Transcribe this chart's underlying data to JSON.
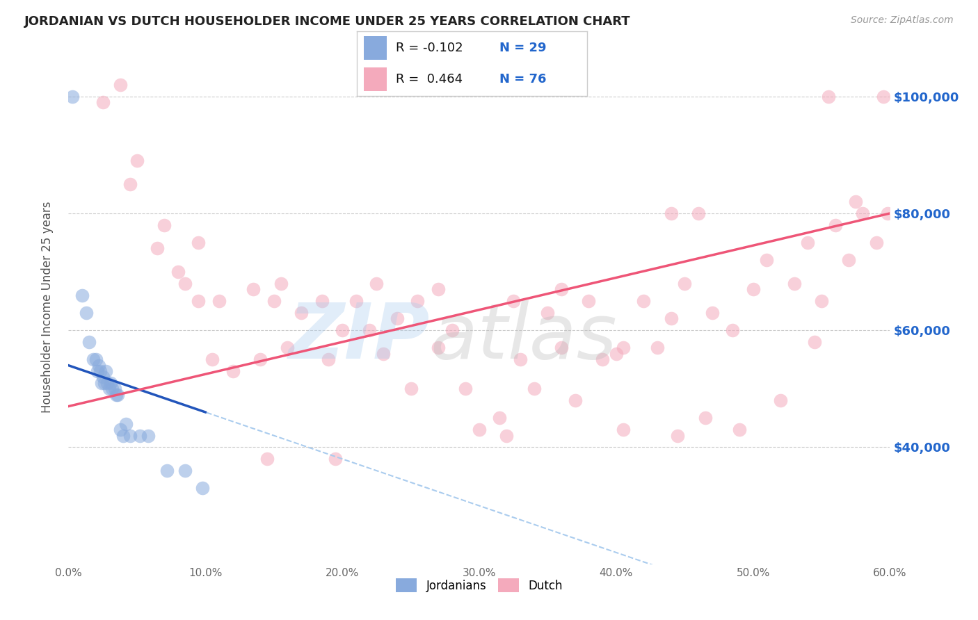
{
  "title": "JORDANIAN VS DUTCH HOUSEHOLDER INCOME UNDER 25 YEARS CORRELATION CHART",
  "source": "Source: ZipAtlas.com",
  "ylabel": "Householder Income Under 25 years",
  "legend_label1": "Jordanians",
  "legend_label2": "Dutch",
  "blue_dot_color": "#88AADD",
  "pink_dot_color": "#F4AABC",
  "blue_line_color": "#2255BB",
  "pink_line_color": "#EE5577",
  "blue_dash_color": "#AACCEE",
  "blue_r": -0.102,
  "blue_n": 29,
  "pink_r": 0.464,
  "pink_n": 76,
  "xmin": 0,
  "xmax": 60,
  "ymin": 20000,
  "ymax": 108000,
  "jordanian_x": [
    0.3,
    1.0,
    1.3,
    1.5,
    1.8,
    2.0,
    2.1,
    2.2,
    2.3,
    2.4,
    2.5,
    2.6,
    2.7,
    2.8,
    3.0,
    3.1,
    3.2,
    3.4,
    3.5,
    3.6,
    3.8,
    4.0,
    4.2,
    4.5,
    5.2,
    5.8,
    7.2,
    8.5,
    9.8
  ],
  "jordanian_y": [
    100000,
    66000,
    63000,
    58000,
    55000,
    55000,
    53000,
    54000,
    53000,
    51000,
    52000,
    51000,
    53000,
    51000,
    50000,
    51000,
    50000,
    50000,
    49000,
    49000,
    43000,
    42000,
    44000,
    42000,
    42000,
    42000,
    36000,
    36000,
    33000
  ],
  "dutch_x": [
    2.5,
    3.8,
    4.5,
    5.0,
    6.5,
    7.0,
    8.0,
    8.5,
    9.5,
    10.5,
    11.0,
    12.0,
    13.5,
    14.0,
    15.0,
    15.5,
    16.0,
    17.0,
    18.5,
    19.0,
    20.0,
    21.0,
    22.0,
    23.0,
    24.0,
    25.0,
    25.5,
    27.0,
    28.0,
    29.0,
    30.0,
    31.5,
    32.5,
    33.0,
    34.0,
    35.0,
    36.0,
    37.0,
    38.0,
    39.0,
    40.0,
    40.5,
    42.0,
    43.0,
    44.0,
    45.0,
    46.5,
    47.0,
    48.5,
    49.0,
    50.0,
    51.0,
    52.0,
    53.0,
    54.0,
    55.0,
    56.0,
    57.0,
    58.0,
    59.0,
    59.5,
    59.8,
    54.5,
    40.5,
    27.0,
    19.5,
    14.5,
    9.5,
    22.5,
    32.0,
    44.5,
    46.0,
    55.5,
    57.5,
    44.0,
    36.0
  ],
  "dutch_y": [
    99000,
    102000,
    85000,
    89000,
    74000,
    78000,
    70000,
    68000,
    65000,
    55000,
    65000,
    53000,
    67000,
    55000,
    65000,
    68000,
    57000,
    63000,
    65000,
    55000,
    60000,
    65000,
    60000,
    56000,
    62000,
    50000,
    65000,
    67000,
    60000,
    50000,
    43000,
    45000,
    65000,
    55000,
    50000,
    63000,
    67000,
    48000,
    65000,
    55000,
    56000,
    43000,
    65000,
    57000,
    62000,
    68000,
    45000,
    63000,
    60000,
    43000,
    67000,
    72000,
    48000,
    68000,
    75000,
    65000,
    78000,
    72000,
    80000,
    75000,
    100000,
    80000,
    58000,
    57000,
    57000,
    38000,
    38000,
    75000,
    68000,
    42000,
    42000,
    80000,
    100000,
    82000,
    80000,
    57000
  ]
}
